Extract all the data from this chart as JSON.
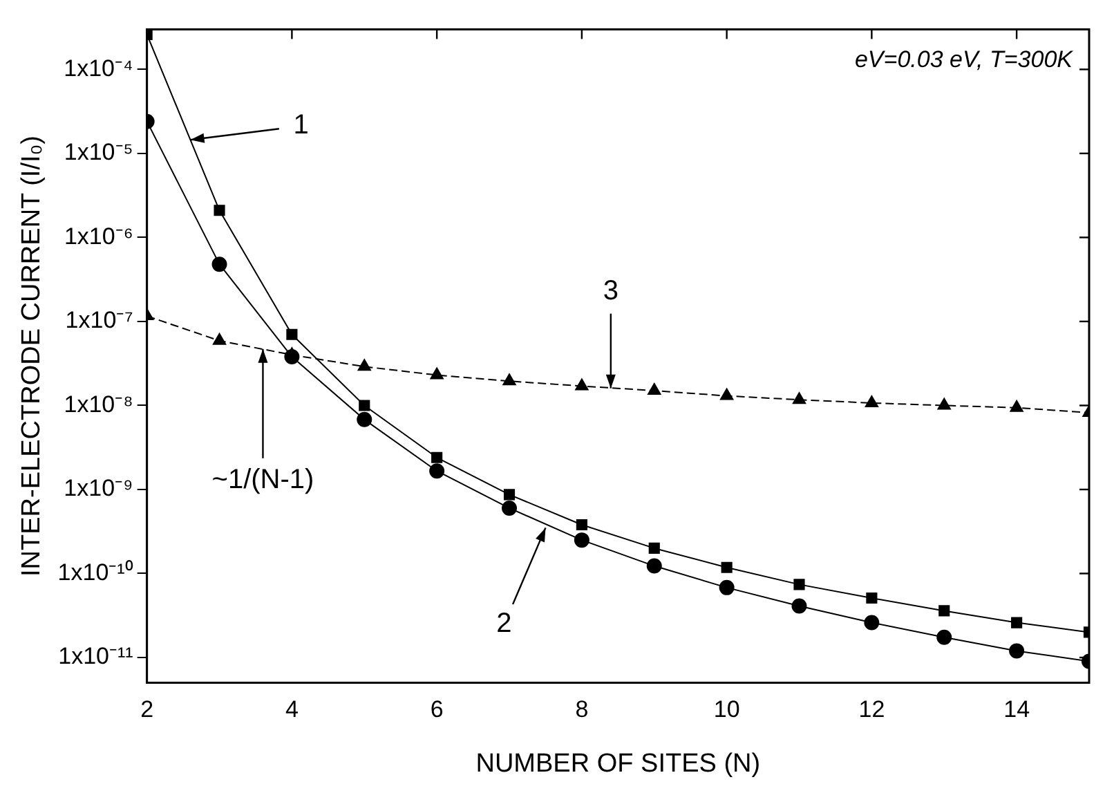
{
  "chart_data": {
    "type": "line",
    "xlabel": "NUMBER OF SITES (N)",
    "ylabel": "INTER-ELECTRODE CURRENT (I/I₀)",
    "x": [
      2,
      3,
      4,
      5,
      6,
      7,
      8,
      9,
      10,
      11,
      12,
      13,
      14,
      15
    ],
    "series": [
      {
        "color": "#000000",
        "marker": "square",
        "line_style": "solid",
        "values": [
          0.00026,
          2.1e-06,
          7e-08,
          1e-08,
          2.4e-09,
          8.7e-10,
          3.8e-10,
          2e-10,
          1.18e-10,
          7.4e-11,
          5.1e-11,
          3.6e-11,
          2.6e-11,
          2e-11
        ]
      },
      {
        "color": "#000000",
        "marker": "circle",
        "line_style": "solid",
        "values": [
          2.4e-05,
          4.8e-07,
          3.8e-08,
          6.8e-09,
          1.66e-09,
          6e-10,
          2.5e-10,
          1.23e-10,
          6.8e-11,
          4.1e-11,
          2.6e-11,
          1.74e-11,
          1.2e-11,
          9e-12
        ]
      },
      {
        "color": "#000000",
        "marker": "triangle",
        "line_style": "dashed",
        "values": [
          1.16e-07,
          5.9e-08,
          4e-08,
          2.9e-08,
          2.3e-08,
          1.95e-08,
          1.7e-08,
          1.5e-08,
          1.3e-08,
          1.17e-08,
          1.07e-08,
          1e-08,
          9.4e-09,
          8.2e-09
        ]
      }
    ],
    "log": "y",
    "xlim": [
      2,
      15
    ],
    "xticks": [
      2,
      4,
      6,
      8,
      10,
      12,
      14
    ],
    "ylim": [
      5e-12,
      0.0003
    ],
    "yticks": [
      {
        "value": 0.0001,
        "label": "1x10⁻⁴"
      },
      {
        "value": 1e-05,
        "label": "1x10⁻⁵"
      },
      {
        "value": 1e-06,
        "label": "1x10⁻⁶"
      },
      {
        "value": 1e-07,
        "label": "1x10⁻⁷"
      },
      {
        "value": 1e-08,
        "label": "1x10⁻⁸"
      },
      {
        "value": 1e-09,
        "label": "1x10⁻⁹"
      },
      {
        "value": 1e-10,
        "label": "1x10⁻¹⁰"
      },
      {
        "value": 1e-11,
        "label": "1x10⁻¹¹"
      }
    ],
    "grid": false,
    "legend": false,
    "annotations": [
      {
        "text": "1",
        "x": 2.6,
        "y": 1.45e-05
      },
      {
        "text": "3",
        "x": 8.4,
        "y": 1.6e-08
      },
      {
        "text": "2",
        "x": 7.5,
        "y": 3.5e-10
      },
      {
        "text": "~1/(N-1)",
        "x": 3.6,
        "y": 4.7e-08
      },
      "eV=0.03 eV, T=300K"
    ]
  }
}
